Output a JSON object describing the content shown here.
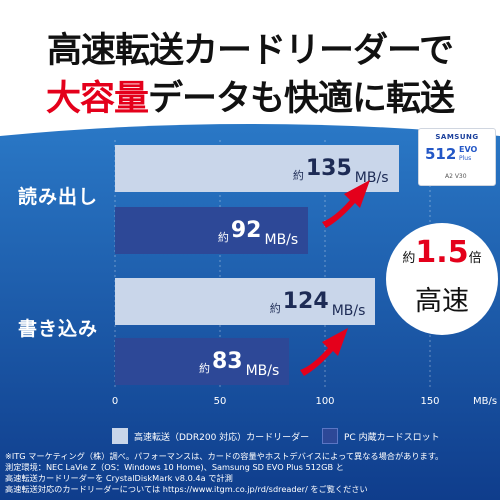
{
  "headline": {
    "line1": "高速転送カードリーダーで",
    "line2_part1": "大容量",
    "line2_part2": "データ",
    "line2_part3": "も快適に転送"
  },
  "card": {
    "brand": "SAMSUNG",
    "capacity": "512",
    "model_line1": "EVO",
    "model_line2": "Plus",
    "marks": "A2 V30"
  },
  "badge": {
    "prefix": "約",
    "value": "1.5",
    "suffix": "倍",
    "label": "高速"
  },
  "legend": {
    "fast": "高速転送（DDR200 対応）カードリーダー",
    "pc": "PC 内蔵カードスロット"
  },
  "footnotes": [
    "※ITG マーケティング（株）調べ。パフォーマンスは、カードの容量やホストデバイスによって異なる場合があります。",
    "測定環境：NEC LaVie Z（OS：Windows 10 Home)、Samsung SD EVO Plus 512GB と",
    "高速転送カードリーダーを CrystalDiskMark v8.0.4a で計測",
    "高速転送対応のカードリーダーについては https://www.itgm.co.jp/rd/sdreader/ をご覧ください"
  ],
  "colors": {
    "fast": "#c9d6ea",
    "pc": "#2d4897",
    "accent": "#e4001b",
    "panel_top": "#2a78c6",
    "panel_bottom": "#0f3d8c"
  },
  "chart_data": {
    "type": "bar",
    "orientation": "horizontal",
    "categories": [
      "読み出し",
      "書き込み"
    ],
    "series": [
      {
        "name": "高速転送（DDR200 対応）カードリーダー",
        "values": [
          135,
          124
        ],
        "labels": [
          "135",
          "124"
        ]
      },
      {
        "name": "PC 内蔵カードスロット",
        "values": [
          92,
          83
        ],
        "labels": [
          "92",
          "83"
        ]
      }
    ],
    "value_prefix": "約",
    "unit": "MB/s",
    "xlim": [
      0,
      150
    ],
    "xticks": [
      "0",
      "50",
      "100",
      "150"
    ],
    "xunit": "MB/s",
    "grid": true,
    "legend_position": "bottom"
  }
}
